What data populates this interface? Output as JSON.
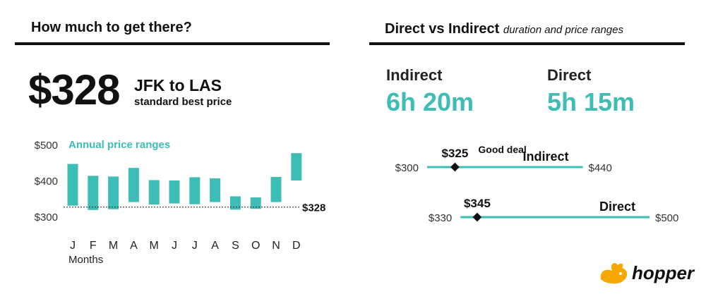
{
  "left_panel": {
    "title": "How much to get there?",
    "price": "$328",
    "route": "JFK to LAS",
    "route_subtitle": "standard best price"
  },
  "right_panel": {
    "title": "Direct vs Indirect",
    "subtitle": "duration and price ranges",
    "durations": [
      {
        "label": "Indirect",
        "value": "6h 20m"
      },
      {
        "label": "Direct",
        "value": "5h 15m"
      }
    ]
  },
  "logo": {
    "text": "hopper",
    "icon": "bunny-icon",
    "color": "#f5a800"
  },
  "colors": {
    "accent": "#3dbdb6",
    "text": "#111111"
  },
  "chart_data": [
    {
      "type": "bar",
      "subtype": "floating-range",
      "title": "Annual price ranges",
      "xlabel": "Months",
      "ylabel": "",
      "categories": [
        "J",
        "F",
        "M",
        "A",
        "M",
        "J",
        "J",
        "A",
        "S",
        "O",
        "N",
        "D"
      ],
      "ranges": [
        [
          332,
          448
        ],
        [
          320,
          415
        ],
        [
          322,
          413
        ],
        [
          342,
          437
        ],
        [
          335,
          403
        ],
        [
          338,
          402
        ],
        [
          336,
          411
        ],
        [
          342,
          408
        ],
        [
          321,
          358
        ],
        [
          323,
          355
        ],
        [
          342,
          412
        ],
        [
          402,
          478
        ]
      ],
      "ylim": [
        300,
        500
      ],
      "yticks": [
        300,
        400,
        500
      ],
      "ytick_labels": [
        "$300",
        "$400",
        "$500"
      ],
      "reference_line": {
        "value": 328,
        "label": "$328",
        "style": "dashed"
      },
      "grid": false
    },
    {
      "type": "range-line",
      "series": [
        {
          "name": "Indirect",
          "min": 300,
          "max": 440,
          "min_label": "$300",
          "max_label": "$440",
          "marker": 325,
          "marker_label": "$325",
          "annotation": "Good deal"
        },
        {
          "name": "Direct",
          "min": 330,
          "max": 500,
          "min_label": "$330",
          "max_label": "$500",
          "marker": 345,
          "marker_label": "$345"
        }
      ]
    }
  ]
}
